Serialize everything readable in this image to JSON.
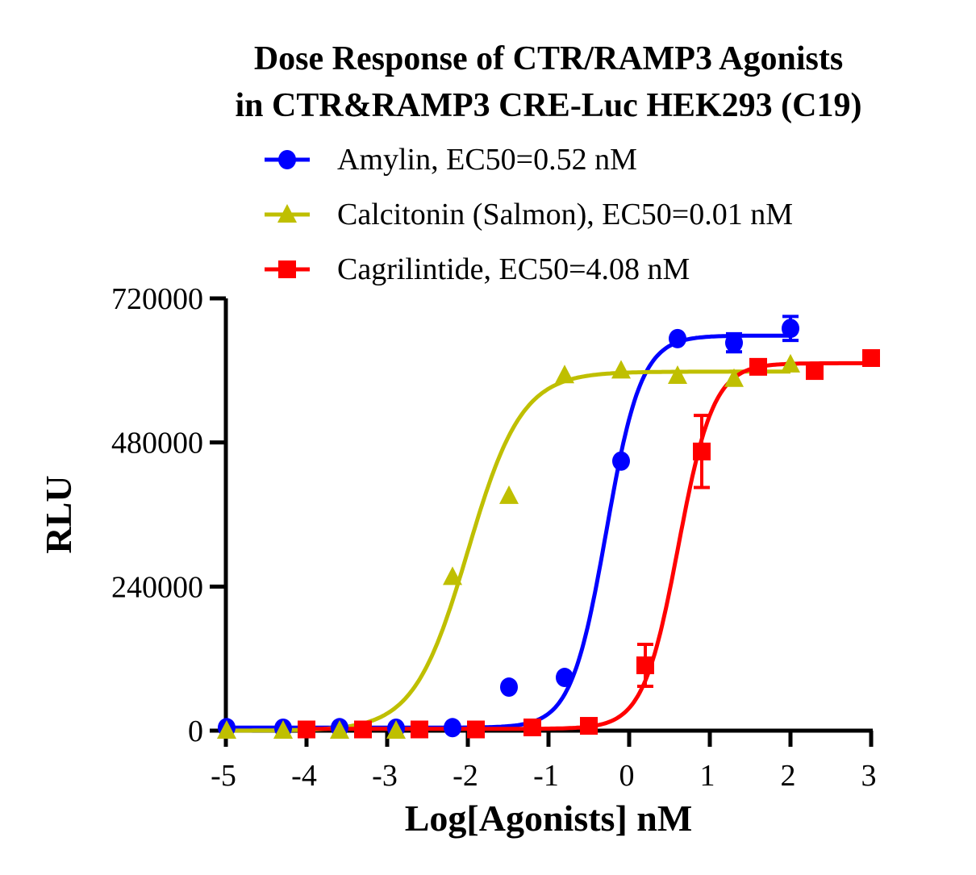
{
  "chart_data": {
    "type": "scatter",
    "title": [
      "Dose Response of CTR/RAMP3 Agonists",
      "in CTR&RAMP3 CRE-Luc HEK293 (C19)"
    ],
    "xlabel": "Log[Agonists] nM",
    "ylabel": "RLU",
    "xlim": [
      -5,
      3
    ],
    "ylim": [
      0,
      720000
    ],
    "xticks": [
      -5,
      -4,
      -3,
      -2,
      -1,
      0,
      1,
      2,
      3
    ],
    "xtick_labels": [
      "-5",
      "-4",
      "-3",
      "-2",
      "-1",
      "0",
      "1",
      "2",
      "3"
    ],
    "yticks": [
      0,
      240000,
      480000,
      720000
    ],
    "ytick_labels": [
      "0",
      "240000",
      "480000",
      "720000"
    ],
    "grid": false,
    "legend_placement": "top",
    "series": [
      {
        "name": "Amylin",
        "ec50_label": "EC50=0.52 nM",
        "color": "#0000ff",
        "marker": "circle",
        "x": [
          -4.99,
          -4.29,
          -3.59,
          -2.89,
          -2.19,
          -1.49,
          -0.8,
          -0.1,
          0.6,
          1.3,
          2.0
        ],
        "y": [
          5000,
          4000,
          5000,
          4000,
          5000,
          72500,
          88600,
          449000,
          653000,
          646000,
          670000
        ],
        "err": [
          0,
          0,
          0,
          0,
          0,
          0,
          0,
          0,
          0,
          15000,
          20000
        ],
        "fit": {
          "bottom": 5000,
          "top": 658000,
          "log_ec50": -0.284,
          "hill": 2.0
        }
      },
      {
        "name": "Calcitonin (Salmon)",
        "ec50_label": "EC50=0.01 nM",
        "color": "#bfbf00",
        "marker": "triangle",
        "x": [
          -4.99,
          -4.29,
          -3.59,
          -2.89,
          -2.19,
          -1.49,
          -0.8,
          -0.1,
          0.6,
          1.3,
          2.0
        ],
        "y": [
          0,
          0,
          0,
          0,
          256000,
          391000,
          592000,
          600000,
          591000,
          586000,
          610000
        ],
        "err": [
          0,
          0,
          0,
          0,
          0,
          0,
          0,
          0,
          0,
          0,
          0
        ],
        "fit": {
          "bottom": 0,
          "top": 598000,
          "log_ec50": -2.0,
          "hill": 1.3
        }
      },
      {
        "name": "Cagrilintide",
        "ec50_label": "EC50=4.08 nM",
        "color": "#ff0000",
        "marker": "square",
        "x": [
          -4.0,
          -3.3,
          -2.6,
          -1.9,
          -1.2,
          -0.5,
          0.2,
          0.9,
          1.6,
          2.3,
          3.0
        ],
        "y": [
          2000,
          2000,
          2000,
          2000,
          5400,
          8000,
          108800,
          465000,
          606000,
          599000,
          620600
        ],
        "err": [
          0,
          0,
          0,
          0,
          0,
          0,
          35000,
          60000,
          0,
          8000,
          0
        ],
        "fit": {
          "bottom": 3000,
          "top": 612000,
          "log_ec50": 0.61,
          "hill": 2.0
        }
      }
    ]
  }
}
